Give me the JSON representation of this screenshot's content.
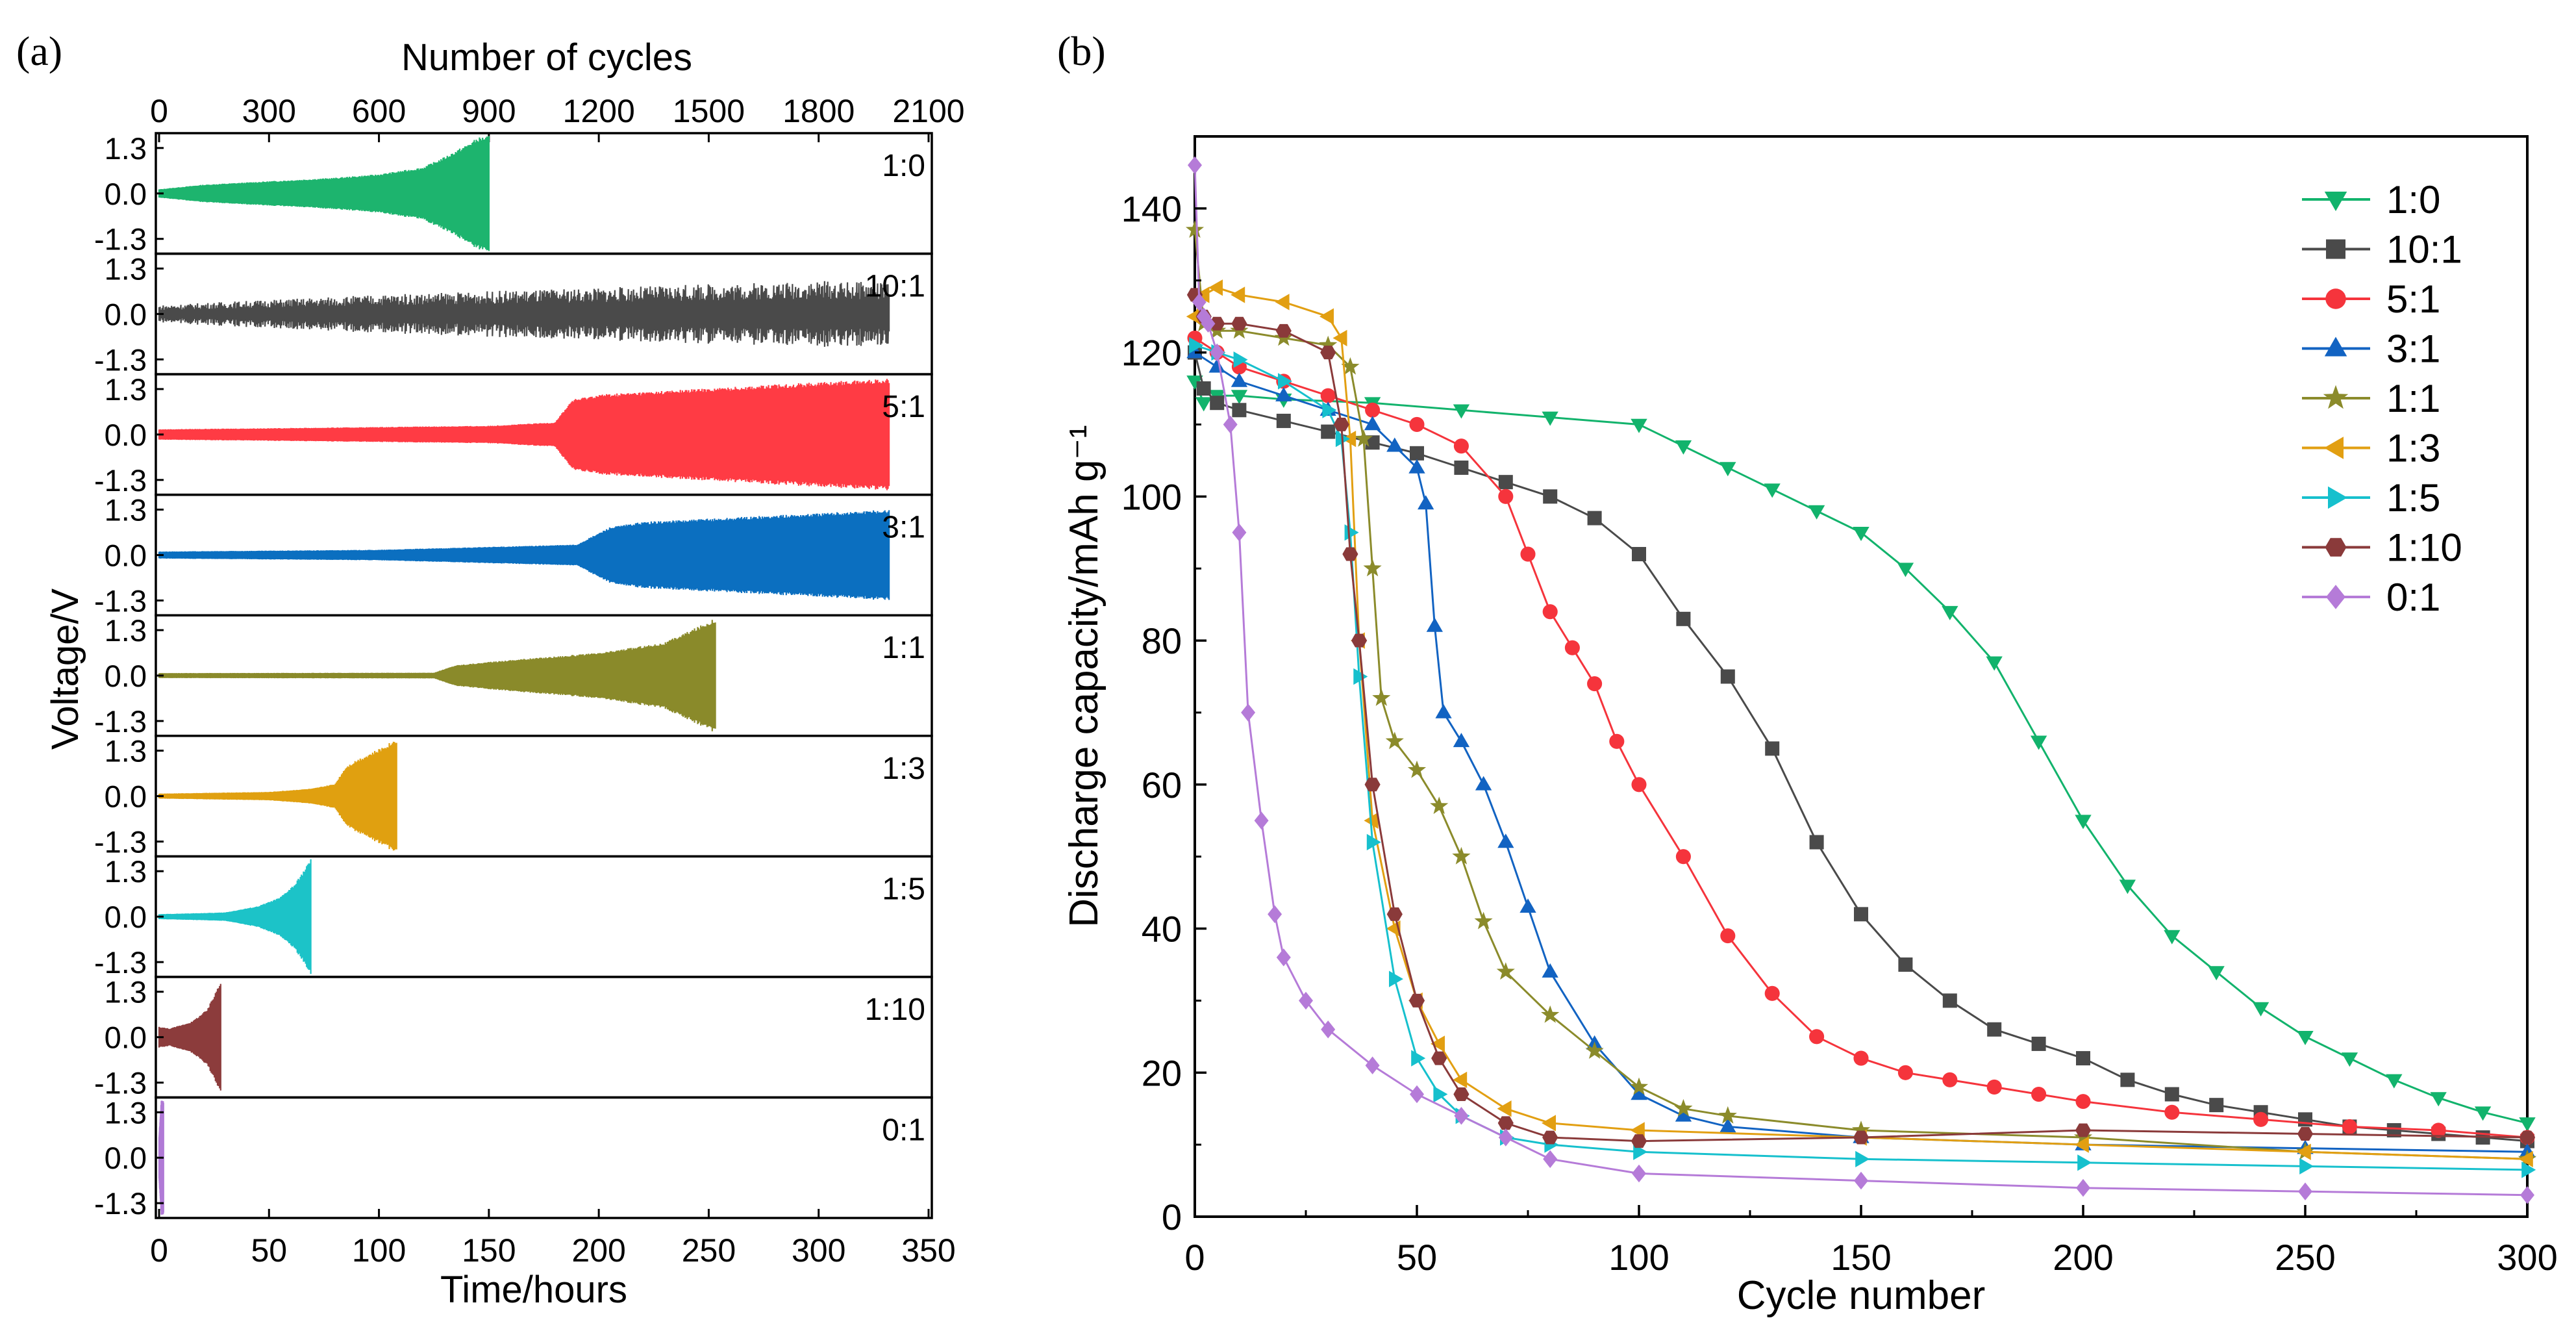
{
  "chart_data": [
    {
      "panel_label": "(a)",
      "type": "line",
      "title": "",
      "xlabel": "Time/hours",
      "x2label": "Number of cycles",
      "ylabel": "Voltage/V",
      "xlim": [
        0,
        350
      ],
      "x2lim": [
        0,
        2100
      ],
      "ylim": [
        -1.65,
        1.65
      ],
      "x_ticks": [
        "0",
        "50",
        "100",
        "150",
        "200",
        "250",
        "300",
        "350"
      ],
      "x2_ticks": [
        "0",
        "300",
        "600",
        "900",
        "1200",
        "1500",
        "1800",
        "2100"
      ],
      "y_ticks": [
        "1.3",
        "0.0",
        "-1.3"
      ],
      "series": [
        {
          "name": "1:0",
          "color": "#1db46e",
          "end_hours": 150,
          "envelope_hours": [
            0,
            20,
            50,
            80,
            100,
            120,
            130,
            140,
            145,
            150
          ],
          "envelope_amplitude": [
            0.12,
            0.25,
            0.35,
            0.45,
            0.55,
            0.75,
            1.05,
            1.4,
            1.6,
            1.65
          ]
        },
        {
          "name": "10:1",
          "color": "#4a4a4a",
          "end_hours": 332,
          "envelope_hours": [
            0,
            30,
            100,
            200,
            250,
            300,
            332
          ],
          "envelope_amplitude": [
            0.25,
            0.35,
            0.55,
            0.75,
            0.85,
            0.95,
            0.9
          ]
        },
        {
          "name": "5:1",
          "color": "#ff3b44",
          "end_hours": 332,
          "envelope_hours": [
            0,
            50,
            150,
            180,
            188,
            200,
            300,
            332
          ],
          "envelope_amplitude": [
            0.15,
            0.18,
            0.25,
            0.35,
            1.0,
            1.15,
            1.5,
            1.6
          ]
        },
        {
          "name": "3:1",
          "color": "#0b6fc0",
          "end_hours": 332,
          "envelope_hours": [
            0,
            100,
            190,
            205,
            220,
            300,
            332
          ],
          "envelope_amplitude": [
            0.1,
            0.15,
            0.3,
            0.8,
            0.95,
            1.2,
            1.3
          ]
        },
        {
          "name": "1:1",
          "color": "#8a8a2a",
          "end_hours": 253,
          "envelope_hours": [
            0,
            125,
            135,
            160,
            200,
            230,
            245,
            253
          ],
          "envelope_amplitude": [
            0.07,
            0.08,
            0.3,
            0.45,
            0.65,
            0.95,
            1.4,
            1.65
          ]
        },
        {
          "name": "1:3",
          "color": "#e0a010",
          "end_hours": 108,
          "envelope_hours": [
            0,
            50,
            70,
            80,
            85,
            90,
            100,
            108
          ],
          "envelope_amplitude": [
            0.07,
            0.12,
            0.22,
            0.35,
            0.85,
            1.05,
            1.35,
            1.65
          ]
        },
        {
          "name": "1:5",
          "color": "#1cc3c8",
          "end_hours": 69,
          "envelope_hours": [
            0,
            30,
            45,
            55,
            62,
            66,
            69
          ],
          "envelope_amplitude": [
            0.07,
            0.12,
            0.3,
            0.55,
            0.95,
            1.35,
            1.65
          ]
        },
        {
          "name": "1:10",
          "color": "#8c3c3c",
          "end_hours": 28,
          "envelope_hours": [
            0,
            5,
            15,
            22,
            25,
            28
          ],
          "envelope_amplitude": [
            0.3,
            0.25,
            0.45,
            0.8,
            1.2,
            1.65
          ]
        },
        {
          "name": "0:1",
          "color": "#b07ad6",
          "end_hours": 2,
          "envelope_hours": [
            0,
            1,
            2
          ],
          "envelope_amplitude": [
            0.6,
            1.65,
            1.65
          ]
        }
      ]
    },
    {
      "panel_label": "(b)",
      "type": "scatter",
      "title": "",
      "xlabel": "Cycle number",
      "ylabel": "Discharge capacity/mAh g⁻¹",
      "xlim": [
        0,
        300
      ],
      "ylim": [
        0,
        150
      ],
      "x_ticks": [
        "0",
        "50",
        "100",
        "150",
        "200",
        "250",
        "300"
      ],
      "y_ticks": [
        "0",
        "20",
        "40",
        "60",
        "80",
        "100",
        "120",
        "140"
      ],
      "legend_position": "top-right",
      "series": [
        {
          "name": "1:0",
          "color": "#12b36c",
          "marker": "triangle-down",
          "x": [
            0,
            2,
            5,
            10,
            20,
            40,
            60,
            80,
            100,
            110,
            120,
            130,
            140,
            150,
            160,
            170,
            180,
            190,
            200,
            210,
            220,
            230,
            240,
            250,
            260,
            270,
            280,
            290,
            300
          ],
          "y": [
            116,
            113,
            114,
            114,
            113.5,
            113,
            112,
            111,
            110,
            107,
            104,
            101,
            98,
            95,
            90,
            84,
            77,
            66,
            55,
            46,
            39,
            34,
            29,
            25,
            22,
            19,
            16.5,
            14.5,
            13
          ]
        },
        {
          "name": "10:1",
          "color": "#4a4a4a",
          "marker": "square",
          "x": [
            0,
            2,
            5,
            10,
            20,
            30,
            40,
            50,
            60,
            70,
            80,
            90,
            100,
            110,
            120,
            130,
            140,
            150,
            160,
            170,
            180,
            190,
            200,
            210,
            220,
            230,
            240,
            250,
            260,
            270,
            280,
            290,
            300
          ],
          "y": [
            120,
            115,
            113,
            112,
            110.5,
            109,
            107.5,
            106,
            104,
            102,
            100,
            97,
            92,
            83,
            75,
            65,
            52,
            42,
            35,
            30,
            26,
            24,
            22,
            19,
            17,
            15.5,
            14.5,
            13.5,
            12.5,
            12,
            11.5,
            11,
            10.5
          ]
        },
        {
          "name": "5:1",
          "color": "#f5343c",
          "marker": "circle",
          "x": [
            0,
            5,
            10,
            20,
            30,
            40,
            50,
            60,
            70,
            75,
            80,
            85,
            90,
            95,
            100,
            110,
            120,
            130,
            140,
            150,
            160,
            170,
            180,
            190,
            200,
            220,
            240,
            260,
            280,
            300
          ],
          "y": [
            122,
            120,
            118,
            116,
            114,
            112,
            110,
            107,
            100,
            92,
            84,
            79,
            74,
            66,
            60,
            50,
            39,
            31,
            25,
            22,
            20,
            19,
            18,
            17,
            16,
            14.5,
            13.5,
            12.5,
            12,
            11
          ]
        },
        {
          "name": "3:1",
          "color": "#1263c2",
          "marker": "triangle-up",
          "x": [
            0,
            5,
            10,
            20,
            30,
            40,
            45,
            50,
            52,
            54,
            56,
            60,
            65,
            70,
            75,
            80,
            90,
            100,
            110,
            120,
            150,
            200,
            250,
            300
          ],
          "y": [
            120,
            118,
            116,
            114,
            112,
            110,
            107,
            104,
            99,
            82,
            70,
            66,
            60,
            52,
            43,
            34,
            24,
            17,
            14,
            12.5,
            11,
            10,
            9.5,
            9
          ]
        },
        {
          "name": "1:1",
          "color": "#8b8b2b",
          "marker": "star",
          "x": [
            0,
            2,
            5,
            10,
            20,
            30,
            35,
            38,
            40,
            42,
            45,
            50,
            55,
            60,
            65,
            70,
            80,
            90,
            100,
            110,
            120,
            150,
            200,
            250,
            300
          ],
          "y": [
            137,
            124,
            123,
            123,
            122,
            121,
            118,
            108,
            90,
            72,
            66,
            62,
            57,
            50,
            41,
            34,
            28,
            23,
            18,
            15,
            14,
            12,
            11,
            9,
            8
          ]
        },
        {
          "name": "1:3",
          "color": "#e29f12",
          "marker": "triangle-left",
          "x": [
            0,
            2,
            5,
            10,
            20,
            30,
            33,
            35,
            37,
            40,
            45,
            50,
            55,
            60,
            70,
            80,
            100,
            150,
            200,
            250,
            300
          ],
          "y": [
            125,
            128,
            129,
            128,
            127,
            125,
            122,
            108,
            80,
            55,
            40,
            30,
            24,
            19,
            15,
            13,
            12,
            11,
            10,
            9,
            8
          ]
        },
        {
          "name": "1:5",
          "color": "#16c0cd",
          "marker": "triangle-right",
          "x": [
            0,
            5,
            10,
            20,
            30,
            33,
            35,
            37,
            40,
            45,
            50,
            55,
            60,
            70,
            80,
            100,
            150,
            200,
            250,
            300
          ],
          "y": [
            121,
            120,
            119,
            116,
            112,
            108,
            95,
            75,
            52,
            33,
            22,
            17,
            14,
            11,
            10,
            9,
            8,
            7.5,
            7,
            6.5
          ]
        },
        {
          "name": "1:10",
          "color": "#8a3a3a",
          "marker": "hexagon",
          "x": [
            0,
            2,
            5,
            10,
            20,
            30,
            33,
            35,
            37,
            40,
            45,
            50,
            55,
            60,
            70,
            80,
            100,
            150,
            200,
            250,
            300
          ],
          "y": [
            128,
            125,
            124,
            124,
            123,
            120,
            110,
            92,
            80,
            60,
            42,
            30,
            22,
            17,
            13,
            11,
            10.5,
            11,
            12,
            11.5,
            11
          ]
        },
        {
          "name": "0:1",
          "color": "#b57bd8",
          "marker": "diamond",
          "x": [
            0,
            1,
            2,
            3,
            5,
            8,
            10,
            12,
            15,
            18,
            20,
            25,
            30,
            40,
            50,
            60,
            70,
            80,
            100,
            150,
            200,
            250,
            300
          ],
          "y": [
            146,
            127,
            125,
            124,
            120,
            110,
            95,
            70,
            55,
            42,
            36,
            30,
            26,
            21,
            17,
            14,
            11,
            8,
            6,
            5,
            4,
            3.5,
            3
          ]
        }
      ]
    }
  ]
}
